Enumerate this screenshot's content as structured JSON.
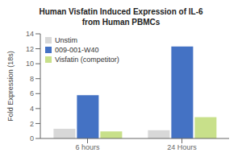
{
  "chart_data": {
    "type": "bar",
    "title": "Human Visfatin Induced Expression of IL-6",
    "subtitle": "from Human PBMCs",
    "categories": [
      "6 hours",
      "24 Hours"
    ],
    "series": [
      {
        "name": "Unstim",
        "color": "#d8d8d8",
        "values": [
          1.3,
          1.1
        ]
      },
      {
        "name": "009-001-W40",
        "color": "#4472c4",
        "values": [
          5.8,
          12.3
        ]
      },
      {
        "name": "Visfatin (competitor)",
        "color": "#c8e08a",
        "values": [
          0.95,
          2.85
        ]
      }
    ],
    "y_label": "Fold Expression (18s)",
    "ylim": [
      0,
      14
    ],
    "yticks": [
      0,
      2,
      4,
      6,
      8,
      10,
      12,
      14
    ],
    "grid": false,
    "legend": "upper left"
  }
}
